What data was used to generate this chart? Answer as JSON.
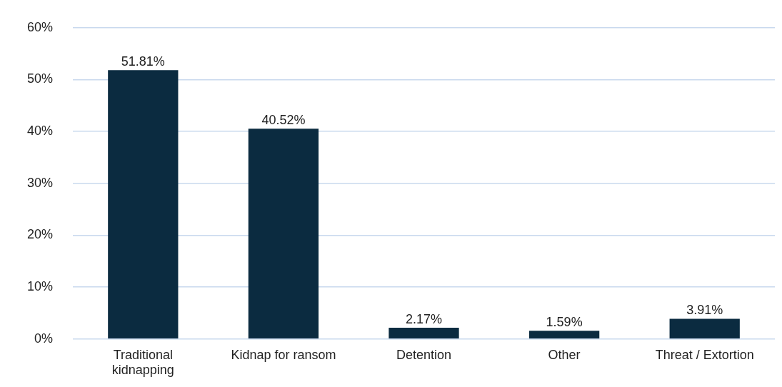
{
  "chart_data": {
    "type": "bar",
    "categories": [
      "Traditional kidnapping",
      "Kidnap for ransom",
      "Detention",
      "Other",
      "Threat / Extortion"
    ],
    "values": [
      51.81,
      40.52,
      2.17,
      1.59,
      3.91
    ],
    "value_labels": [
      "51.81%",
      "40.52%",
      "2.17%",
      "1.59%",
      "3.91%"
    ],
    "color": "#0b2b40",
    "ylim": [
      0,
      60
    ],
    "yticks": [
      {
        "value": 0,
        "label": "0%"
      },
      {
        "value": 10,
        "label": "10%"
      },
      {
        "value": 20,
        "label": "20%"
      },
      {
        "value": 30,
        "label": "30%"
      },
      {
        "value": 40,
        "label": "40%"
      },
      {
        "value": 50,
        "label": "50%"
      },
      {
        "value": 60,
        "label": "60%"
      }
    ],
    "grid": "y",
    "legend": false
  }
}
